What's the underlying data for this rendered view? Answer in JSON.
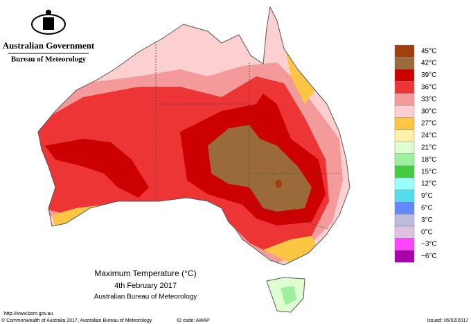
{
  "header": {
    "agency": "Australian Government",
    "bureau": "Bureau of Meteorology"
  },
  "title": {
    "line1": "Maximum Temperature (°C)",
    "line2": "4th February 2017",
    "line3": "Australian Bureau of Meteorology"
  },
  "legend": [
    {
      "label": "45°C",
      "color": "#a0400f"
    },
    {
      "label": "42°C",
      "color": "#9a6a3a"
    },
    {
      "label": "39°C",
      "color": "#cc0000"
    },
    {
      "label": "36°C",
      "color": "#ee3535"
    },
    {
      "label": "33°C",
      "color": "#f59a9a"
    },
    {
      "label": "30°C",
      "color": "#fcd0d0"
    },
    {
      "label": "27°C",
      "color": "#fcc644"
    },
    {
      "label": "24°C",
      "color": "#fff2a8"
    },
    {
      "label": "21°C",
      "color": "#e0ffd0"
    },
    {
      "label": "18°C",
      "color": "#9ef09e"
    },
    {
      "label": "15°C",
      "color": "#44cc44"
    },
    {
      "label": "12°C",
      "color": "#99ffff"
    },
    {
      "label": "9°C",
      "color": "#55ddee"
    },
    {
      "label": "6°C",
      "color": "#6688ff"
    },
    {
      "label": "3°C",
      "color": "#bbbbdd"
    },
    {
      "label": "0°C",
      "color": "#e0c0e0"
    },
    {
      "label": "−3°C",
      "color": "#ff44ff"
    },
    {
      "label": "−6°C",
      "color": "#aa00aa"
    }
  ],
  "footer": {
    "url": "http://www.bom.gov.au",
    "copyright": "© Commonwealth of Australia 2017, Australian Bureau of Meteorology",
    "id_code": "ID code: AWAP",
    "issued": "Issued: 05/02/2017"
  }
}
